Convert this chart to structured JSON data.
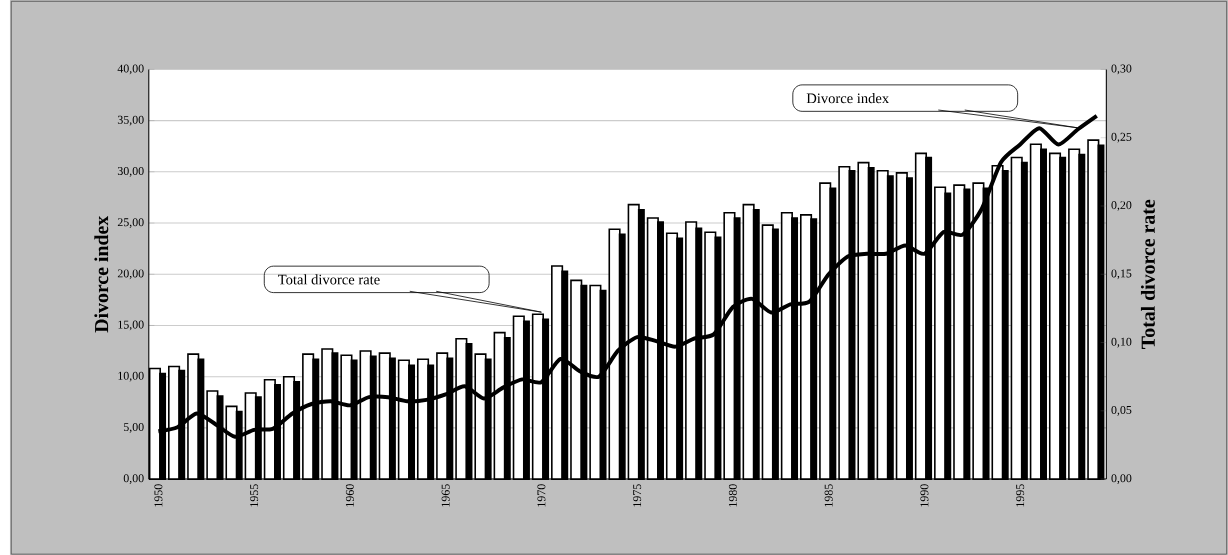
{
  "chart_data": {
    "type": "bar",
    "x": [
      1950,
      1951,
      1952,
      1953,
      1954,
      1955,
      1956,
      1957,
      1958,
      1959,
      1960,
      1961,
      1962,
      1963,
      1964,
      1965,
      1966,
      1967,
      1968,
      1969,
      1970,
      1971,
      1972,
      1973,
      1974,
      1975,
      1976,
      1977,
      1978,
      1979,
      1980,
      1981,
      1982,
      1983,
      1984,
      1985,
      1986,
      1987,
      1988,
      1989,
      1990,
      1991,
      1992,
      1993,
      1994,
      1995,
      1996,
      1997,
      1998,
      1999
    ],
    "series": [
      {
        "color": "#ffffff",
        "values": [
          10.8,
          11.0,
          12.2,
          8.6,
          7.1,
          8.4,
          9.7,
          10.0,
          12.2,
          12.7,
          12.1,
          12.5,
          12.3,
          11.6,
          11.7,
          12.3,
          13.7,
          12.2,
          14.3,
          15.9,
          16.1,
          20.8,
          19.4,
          18.9,
          24.4,
          26.8,
          25.5,
          24.0,
          25.1,
          24.1,
          26.0,
          26.8,
          24.8,
          26.0,
          25.8,
          28.9,
          30.5,
          30.9,
          30.1,
          29.9,
          31.8,
          28.5,
          28.7,
          28.9,
          30.6,
          31.4,
          32.7,
          31.8,
          32.2,
          33.1
        ]
      },
      {
        "color": "#000000",
        "values": [
          10.3,
          10.6,
          11.7,
          8.1,
          6.6,
          8.0,
          9.2,
          9.5,
          11.7,
          12.3,
          11.6,
          12.0,
          11.8,
          11.1,
          11.1,
          11.8,
          13.2,
          11.7,
          13.8,
          15.4,
          15.6,
          20.3,
          18.9,
          18.4,
          23.9,
          26.3,
          25.1,
          23.5,
          24.5,
          23.6,
          25.5,
          26.3,
          24.4,
          25.5,
          25.4,
          28.4,
          30.1,
          30.4,
          29.6,
          29.4,
          31.4,
          27.9,
          28.3,
          28.4,
          30.1,
          30.9,
          32.2,
          31.4,
          31.7,
          32.6
        ]
      },
      {
        "type": "line",
        "axis": "y2",
        "color": "#000000",
        "line_style": "solid",
        "marker": "none",
        "values": [
          0.035,
          0.038,
          0.048,
          0.04,
          0.031,
          0.036,
          0.037,
          0.048,
          0.055,
          0.057,
          0.054,
          0.06,
          0.06,
          0.057,
          0.058,
          0.062,
          0.068,
          0.059,
          0.067,
          0.073,
          0.071,
          0.088,
          0.079,
          0.075,
          0.094,
          0.104,
          0.101,
          0.097,
          0.103,
          0.106,
          0.126,
          0.132,
          0.122,
          0.128,
          0.13,
          0.15,
          0.163,
          0.165,
          0.165,
          0.171,
          0.165,
          0.181,
          0.179,
          0.198,
          0.232,
          0.245,
          0.257,
          0.245,
          0.256,
          0.266
        ]
      }
    ],
    "xlim": [
      1949.5,
      1999.5
    ],
    "xticks": [
      1950,
      1955,
      1960,
      1965,
      1970,
      1975,
      1980,
      1985,
      1990,
      1995
    ],
    "ylim": [
      0,
      40
    ],
    "yticks": [
      {
        "value": 0,
        "label": "0,00"
      },
      {
        "value": 5,
        "label": "5,00"
      },
      {
        "value": 10,
        "label": "10,00"
      },
      {
        "value": 15,
        "label": "15,00"
      },
      {
        "value": 20,
        "label": "20,00"
      },
      {
        "value": 25,
        "label": "25,00"
      },
      {
        "value": 30,
        "label": "30,00"
      },
      {
        "value": 35,
        "label": "35,00"
      },
      {
        "value": 40,
        "label": "40,00"
      }
    ],
    "y2lim": [
      0,
      0.3
    ],
    "y2ticks": [
      {
        "value": 0,
        "label": "0,00"
      },
      {
        "value": 0.05,
        "label": "0,05"
      },
      {
        "value": 0.1,
        "label": "0,10"
      },
      {
        "value": 0.15,
        "label": "0,15"
      },
      {
        "value": 0.2,
        "label": "0,20"
      },
      {
        "value": 0.25,
        "label": "0,25"
      },
      {
        "value": 0.3,
        "label": "0,30"
      }
    ],
    "ylabel": "Divorce index",
    "y2label": "Total divorce rate",
    "grid": "y",
    "annotations": [
      "Total divorce rate",
      "Divorce index"
    ]
  }
}
